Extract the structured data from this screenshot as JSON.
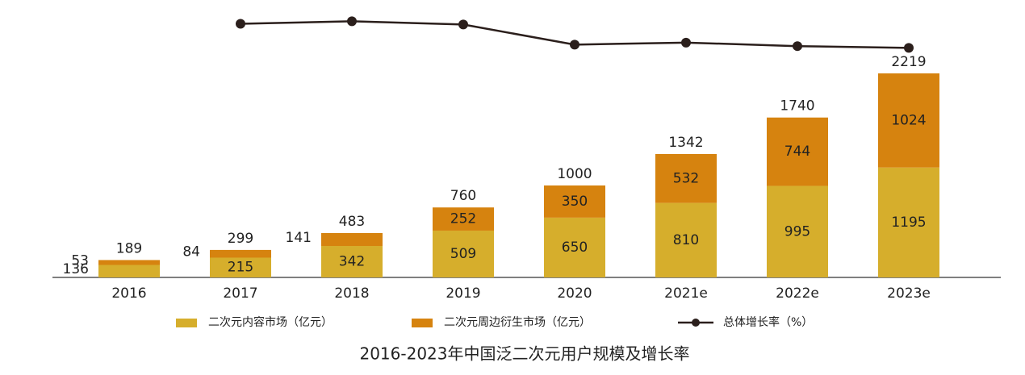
{
  "chart_data": {
    "type": "stacked-bar-line",
    "title": "2016-2023年中国泛二次元用户规模及增长率",
    "categories": [
      "2016",
      "2017",
      "2018",
      "2019",
      "2020",
      "2021e",
      "2022e",
      "2023e"
    ],
    "series": [
      {
        "name": "二次元内容市场（亿元）",
        "color": "#d6ae2c",
        "values": [
          136,
          215,
          342,
          509,
          650,
          810,
          995,
          1195
        ]
      },
      {
        "name": "二次元周边衍生市场（亿元）",
        "color": "#d6830f",
        "values": [
          53,
          84,
          141,
          252,
          350,
          532,
          744,
          1024
        ]
      },
      {
        "name": "总体增长率（%）",
        "type": "line",
        "axis": "y2",
        "color": "#2b1f1c",
        "values": [
          null,
          58.2,
          61.5,
          57.3,
          31.6,
          34.2,
          29.7,
          27.5
        ]
      }
    ],
    "totals": [
      189,
      299,
      483,
      760,
      1000,
      1342,
      1740,
      2219
    ]
  }
}
